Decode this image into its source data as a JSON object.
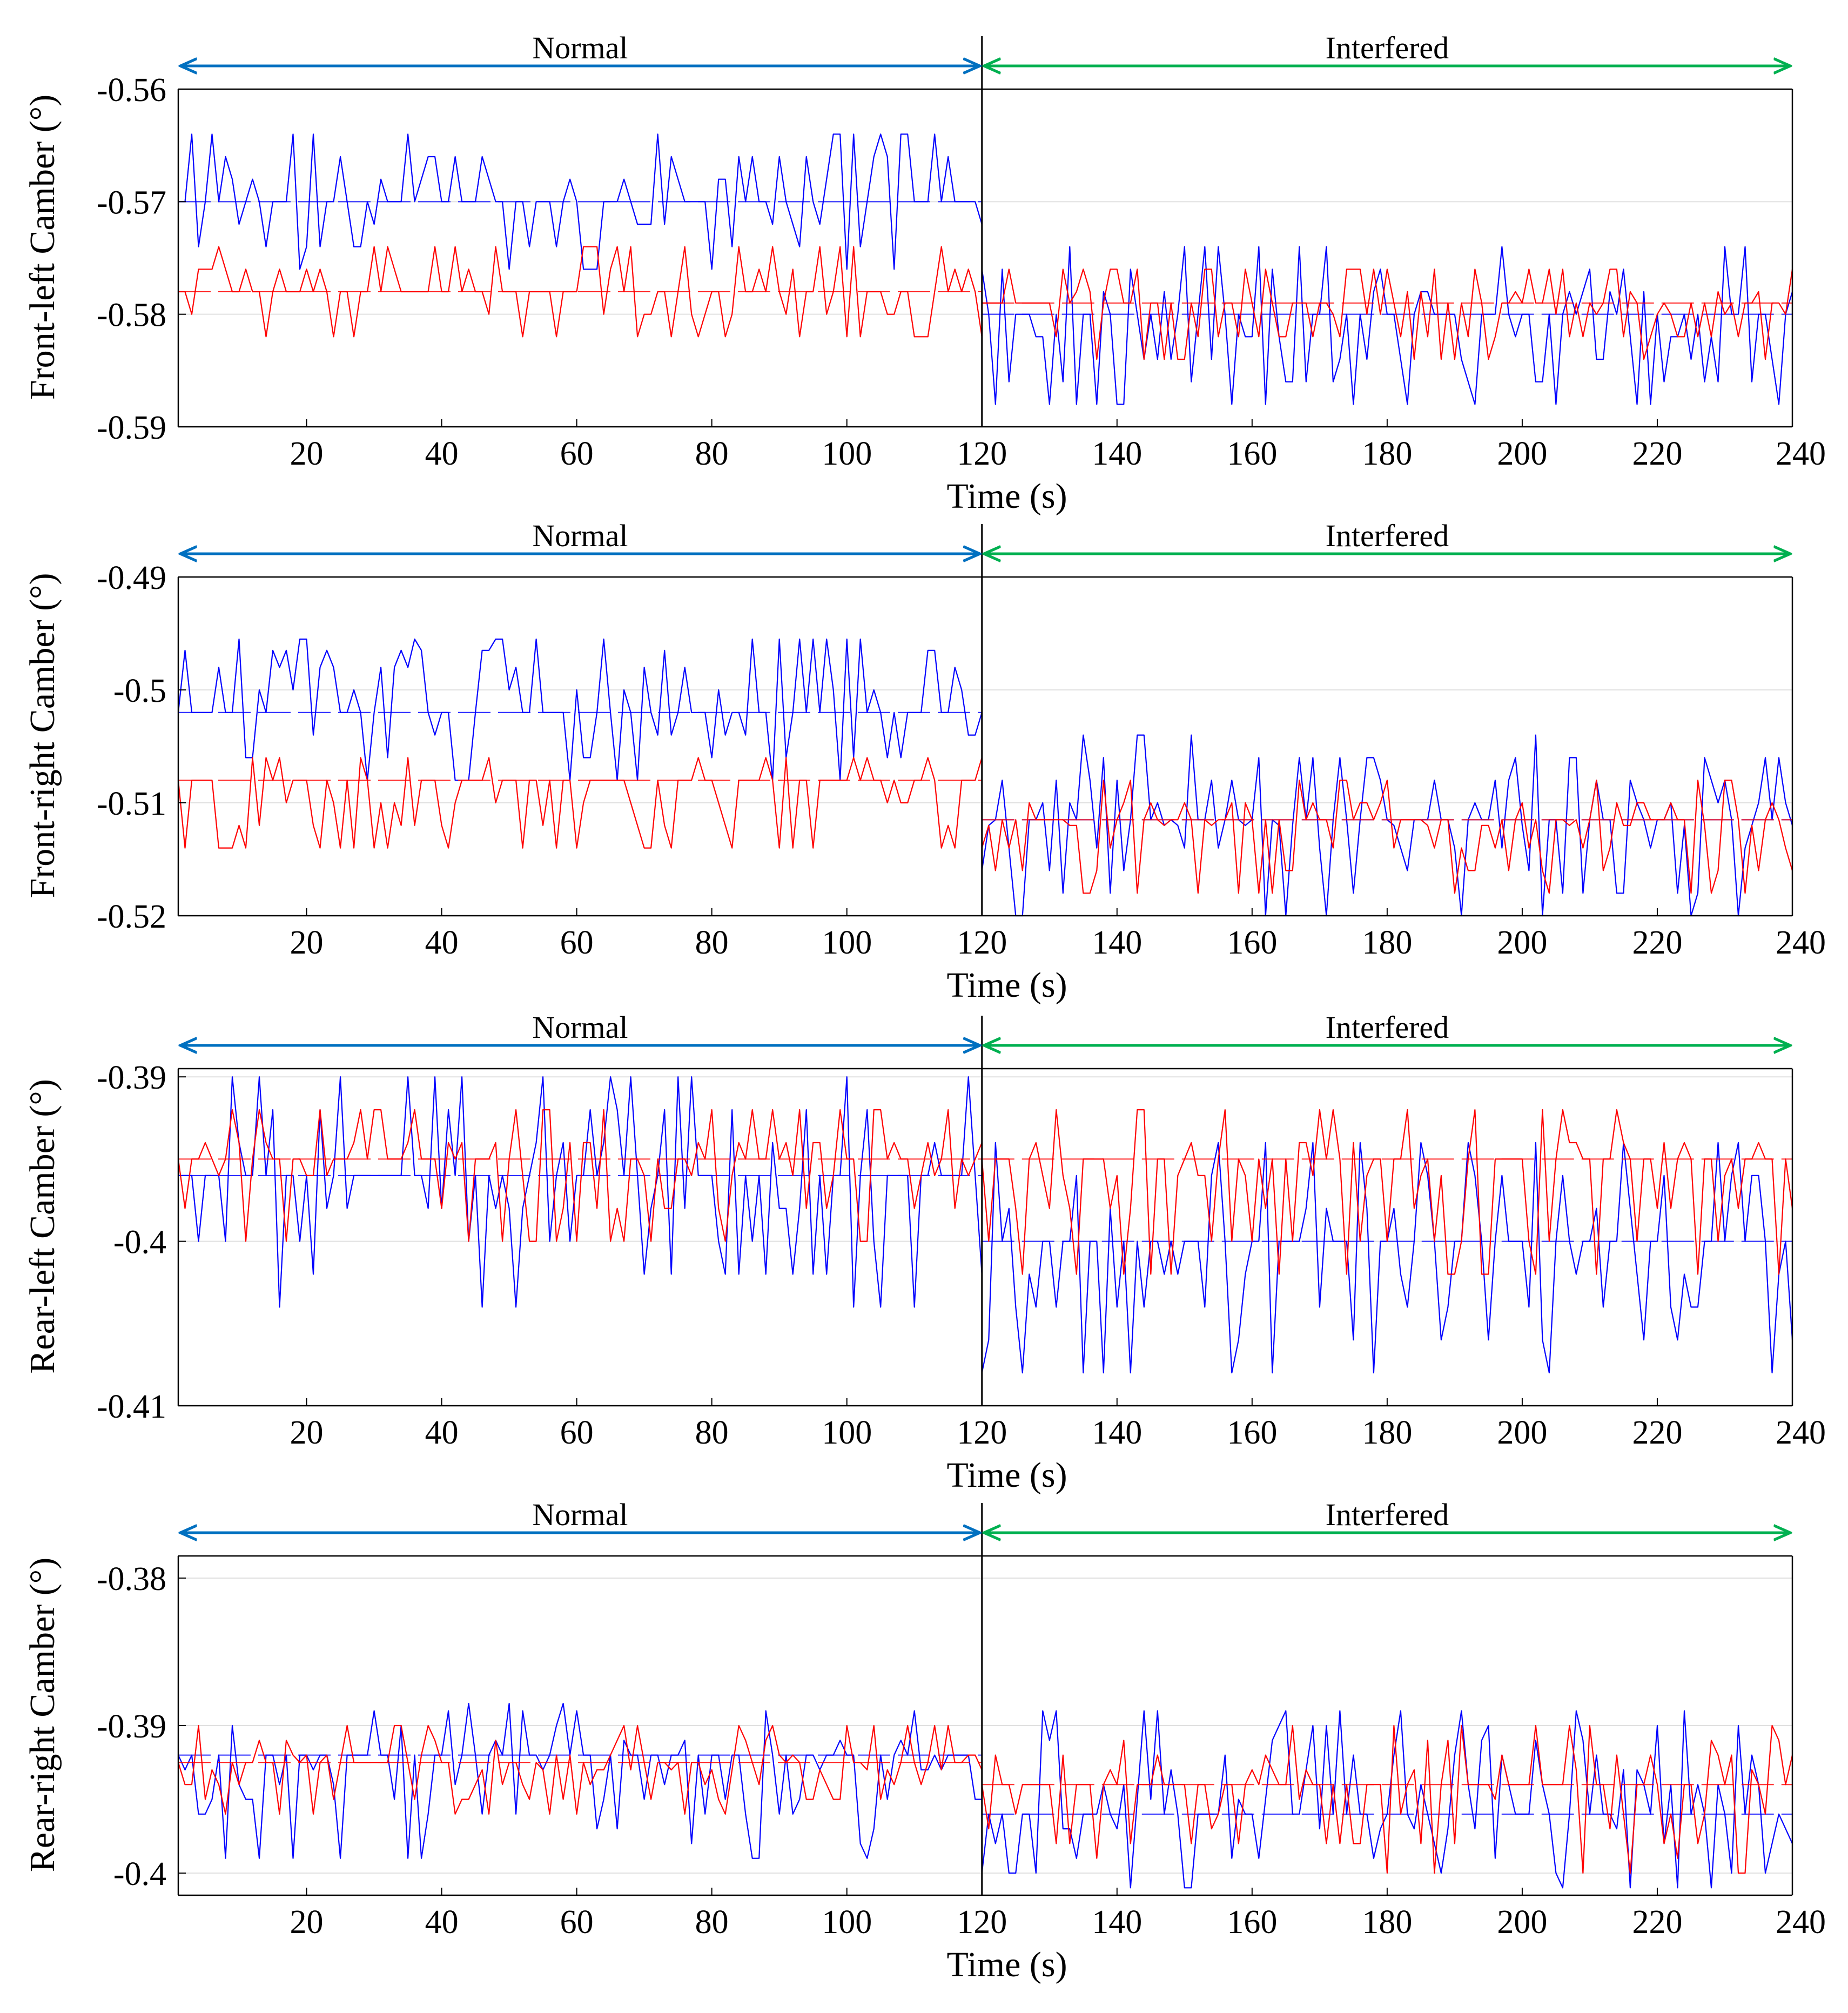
{
  "chart_data": [
    {
      "type": "line",
      "ylabel": "Front-left Camber (°)",
      "xlabel": "Time (s)",
      "xlim": [
        1,
        240
      ],
      "ylim": [
        -0.59,
        -0.56
      ],
      "xticks": [
        20,
        40,
        60,
        80,
        100,
        120,
        140,
        160,
        180,
        200,
        220,
        240
      ],
      "xtick_labels": [
        "20",
        "40",
        "60",
        "80",
        "100",
        "120",
        "140",
        "160",
        "180",
        "200",
        "220",
        "240"
      ],
      "yticks": [
        -0.56,
        -0.57,
        -0.58,
        -0.59
      ],
      "ytick_labels": [
        "-0.56",
        "-0.57",
        "-0.58",
        "-0.59"
      ],
      "grid": "horizontal",
      "phase_divider": 120,
      "phases": [
        {
          "label": "Normal",
          "from": 1,
          "to": 120,
          "color": "#0070c0"
        },
        {
          "label": "Interfered",
          "from": 120,
          "to": 240,
          "color": "#00b050"
        }
      ],
      "series": [
        {
          "name": "blue",
          "color": "#0000ff",
          "seed": 11,
          "segments": [
            {
              "from": 1,
              "to": 120,
              "levels": [
                -0.564,
                -0.566,
                -0.568,
                -0.57,
                -0.572,
                -0.574,
                -0.576
              ],
              "mean": -0.57
            },
            {
              "from": 120,
              "to": 240,
              "levels": [
                -0.574,
                -0.576,
                -0.578,
                -0.58,
                -0.582,
                -0.584,
                -0.586,
                -0.588
              ],
              "mean": -0.58
            }
          ]
        },
        {
          "name": "red",
          "color": "#ff0000",
          "seed": 23,
          "segments": [
            {
              "from": 1,
              "to": 120,
              "levels": [
                -0.574,
                -0.576,
                -0.578,
                -0.58,
                -0.582
              ],
              "mean": -0.578
            },
            {
              "from": 120,
              "to": 240,
              "levels": [
                -0.576,
                -0.578,
                -0.58,
                -0.582,
                -0.584
              ],
              "mean": -0.579
            }
          ]
        }
      ]
    },
    {
      "type": "line",
      "ylabel": "Front-right Camber (°)",
      "xlabel": "Time (s)",
      "xlim": [
        1,
        240
      ],
      "ylim": [
        -0.52,
        -0.49
      ],
      "xticks": [
        20,
        40,
        60,
        80,
        100,
        120,
        140,
        160,
        180,
        200,
        220,
        240
      ],
      "xtick_labels": [
        "20",
        "40",
        "60",
        "80",
        "100",
        "120",
        "140",
        "160",
        "180",
        "200",
        "220",
        "240"
      ],
      "yticks": [
        -0.49,
        -0.5,
        -0.51,
        -0.52
      ],
      "ytick_labels": [
        "-0.49",
        "-0.5",
        "-0.51",
        "-0.52"
      ],
      "grid": "horizontal",
      "phase_divider": 120,
      "phases": [
        {
          "label": "Normal",
          "from": 1,
          "to": 120,
          "color": "#0070c0"
        },
        {
          "label": "Interfered",
          "from": 120,
          "to": 240,
          "color": "#00b050"
        }
      ],
      "series": [
        {
          "name": "blue",
          "color": "#0000ff",
          "seed": 37,
          "segments": [
            {
              "from": 1,
              "to": 120,
              "levels": [
                -0.4955,
                -0.4965,
                -0.498,
                -0.5,
                -0.502,
                -0.504,
                -0.506,
                -0.508
              ],
              "mean": -0.502
            },
            {
              "from": 120,
              "to": 240,
              "levels": [
                -0.504,
                -0.506,
                -0.508,
                -0.51,
                -0.512,
                -0.514,
                -0.516,
                -0.518,
                -0.52
              ],
              "mean": -0.5115
            }
          ]
        },
        {
          "name": "red",
          "color": "#ff0000",
          "seed": 41,
          "segments": [
            {
              "from": 1,
              "to": 120,
              "levels": [
                -0.506,
                -0.508,
                -0.51,
                -0.512,
                -0.514
              ],
              "mean": -0.508
            },
            {
              "from": 120,
              "to": 240,
              "levels": [
                -0.508,
                -0.51,
                -0.512,
                -0.514,
                -0.516,
                -0.518
              ],
              "mean": -0.5115
            }
          ]
        }
      ]
    },
    {
      "type": "line",
      "ylabel": "Rear-left Camber (°)",
      "xlabel": "Time (s)",
      "xlim": [
        1,
        240
      ],
      "ylim": [
        -0.41,
        -0.3895
      ],
      "xticks": [
        20,
        40,
        60,
        80,
        100,
        120,
        140,
        160,
        180,
        200,
        220,
        240
      ],
      "xtick_labels": [
        "20",
        "40",
        "60",
        "80",
        "100",
        "120",
        "140",
        "160",
        "180",
        "200",
        "220",
        "240"
      ],
      "yticks": [
        -0.39,
        -0.4,
        -0.41
      ],
      "ytick_labels": [
        "-0.39",
        "-0.4",
        "-0.41"
      ],
      "grid": "horizontal",
      "phase_divider": 120,
      "phases": [
        {
          "label": "Normal",
          "from": 1,
          "to": 120,
          "color": "#0070c0"
        },
        {
          "label": "Interfered",
          "from": 120,
          "to": 240,
          "color": "#00b050"
        }
      ],
      "series": [
        {
          "name": "blue",
          "color": "#0000ff",
          "seed": 53,
          "segments": [
            {
              "from": 1,
              "to": 120,
              "levels": [
                -0.39,
                -0.392,
                -0.394,
                -0.396,
                -0.398,
                -0.4,
                -0.402,
                -0.404
              ],
              "mean": -0.396
            },
            {
              "from": 120,
              "to": 240,
              "levels": [
                -0.394,
                -0.396,
                -0.398,
                -0.4,
                -0.402,
                -0.404,
                -0.406,
                -0.408
              ],
              "mean": -0.4
            }
          ]
        },
        {
          "name": "red",
          "color": "#ff0000",
          "seed": 67,
          "segments": [
            {
              "from": 1,
              "to": 120,
              "levels": [
                -0.392,
                -0.394,
                -0.396,
                -0.398,
                -0.4
              ],
              "mean": -0.395
            },
            {
              "from": 120,
              "to": 240,
              "levels": [
                -0.392,
                -0.394,
                -0.396,
                -0.398,
                -0.4,
                -0.402
              ],
              "mean": -0.395
            }
          ]
        }
      ]
    },
    {
      "type": "line",
      "ylabel": "Rear-right Camber (°)",
      "xlabel": "Time (s)",
      "xlim": [
        1,
        240
      ],
      "ylim": [
        -0.4015,
        -0.3785
      ],
      "xticks": [
        20,
        40,
        60,
        80,
        100,
        120,
        140,
        160,
        180,
        200,
        220,
        240
      ],
      "xtick_labels": [
        "20",
        "40",
        "60",
        "80",
        "100",
        "120",
        "140",
        "160",
        "180",
        "200",
        "220",
        "240"
      ],
      "yticks": [
        -0.38,
        -0.39,
        -0.4
      ],
      "ytick_labels": [
        "-0.38",
        "-0.39",
        "-0.4"
      ],
      "grid": "horizontal",
      "phase_divider": 120,
      "phases": [
        {
          "label": "Normal",
          "from": 1,
          "to": 120,
          "color": "#0070c0"
        },
        {
          "label": "Interfered",
          "from": 120,
          "to": 240,
          "color": "#00b050"
        }
      ],
      "series": [
        {
          "name": "blue",
          "color": "#0000ff",
          "seed": 71,
          "segments": [
            {
              "from": 1,
              "to": 120,
              "levels": [
                -0.3885,
                -0.389,
                -0.39,
                -0.391,
                -0.392,
                -0.393,
                -0.394,
                -0.395,
                -0.396,
                -0.397,
                -0.398,
                -0.399
              ],
              "mean": -0.392
            },
            {
              "from": 120,
              "to": 240,
              "levels": [
                -0.389,
                -0.39,
                -0.391,
                -0.392,
                -0.393,
                -0.394,
                -0.395,
                -0.396,
                -0.397,
                -0.398,
                -0.399,
                -0.4,
                -0.401
              ],
              "mean": -0.396
            }
          ]
        },
        {
          "name": "red",
          "color": "#ff0000",
          "seed": 83,
          "segments": [
            {
              "from": 1,
              "to": 120,
              "levels": [
                -0.39,
                -0.391,
                -0.392,
                -0.393,
                -0.394,
                -0.395,
                -0.396
              ],
              "mean": -0.3925
            },
            {
              "from": 120,
              "to": 240,
              "levels": [
                -0.39,
                -0.391,
                -0.392,
                -0.393,
                -0.394,
                -0.395,
                -0.396,
                -0.397,
                -0.398,
                -0.399,
                -0.4
              ],
              "mean": -0.394
            }
          ]
        }
      ]
    }
  ]
}
